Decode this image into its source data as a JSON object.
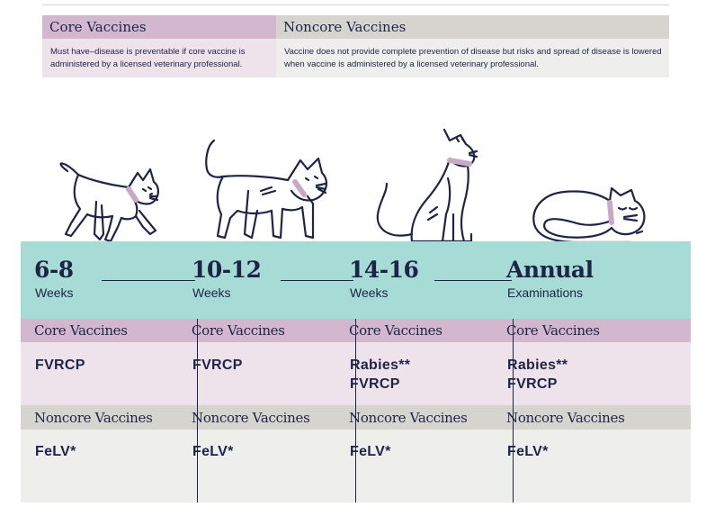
{
  "legend": {
    "core": {
      "title": "Core Vaccines",
      "desc": "Must have–disease is preventable if core vaccine is administered by a licensed veterinary professional."
    },
    "noncore": {
      "title": "Noncore Vaccines",
      "desc": "Vaccine does not provide complete prevention of disease but risks and spread of disease is lowered when vaccine is administered by a licensed veterinary professional."
    }
  },
  "colors": {
    "navy": "#1e2447",
    "teal": "#a7dbd6",
    "core_header": "#d2b7ce",
    "core_body": "#eee2eb",
    "noncore_header": "#d6d4ce",
    "noncore_body": "#eeeeed",
    "collar": "#c9a9c6"
  },
  "icons": [
    "walking-kitten-icon",
    "walking-cat-icon",
    "sitting-cat-icon",
    "sleeping-cat-icon"
  ],
  "columns": [
    {
      "age": "6-8",
      "unit": "Weeks",
      "core_label": "Core Vaccines",
      "core": [
        "FVRCP"
      ],
      "noncore_label": "Noncore Vaccines",
      "noncore": [
        "FeLV*"
      ]
    },
    {
      "age": "10-12",
      "unit": "Weeks",
      "core_label": "Core Vaccines",
      "core": [
        "FVRCP"
      ],
      "noncore_label": "Noncore Vaccines",
      "noncore": [
        "FeLV*"
      ]
    },
    {
      "age": "14-16",
      "unit": "Weeks",
      "core_label": "Core Vaccines",
      "core": [
        "Rabies**",
        "FVRCP"
      ],
      "noncore_label": "Noncore Vaccines",
      "noncore": [
        "FeLV*"
      ]
    },
    {
      "age": "Annual",
      "unit": "Examinations",
      "core_label": "Core Vaccines",
      "core": [
        "Rabies**",
        "FVRCP"
      ],
      "noncore_label": "Noncore Vaccines",
      "noncore": [
        "FeLV*"
      ]
    }
  ]
}
